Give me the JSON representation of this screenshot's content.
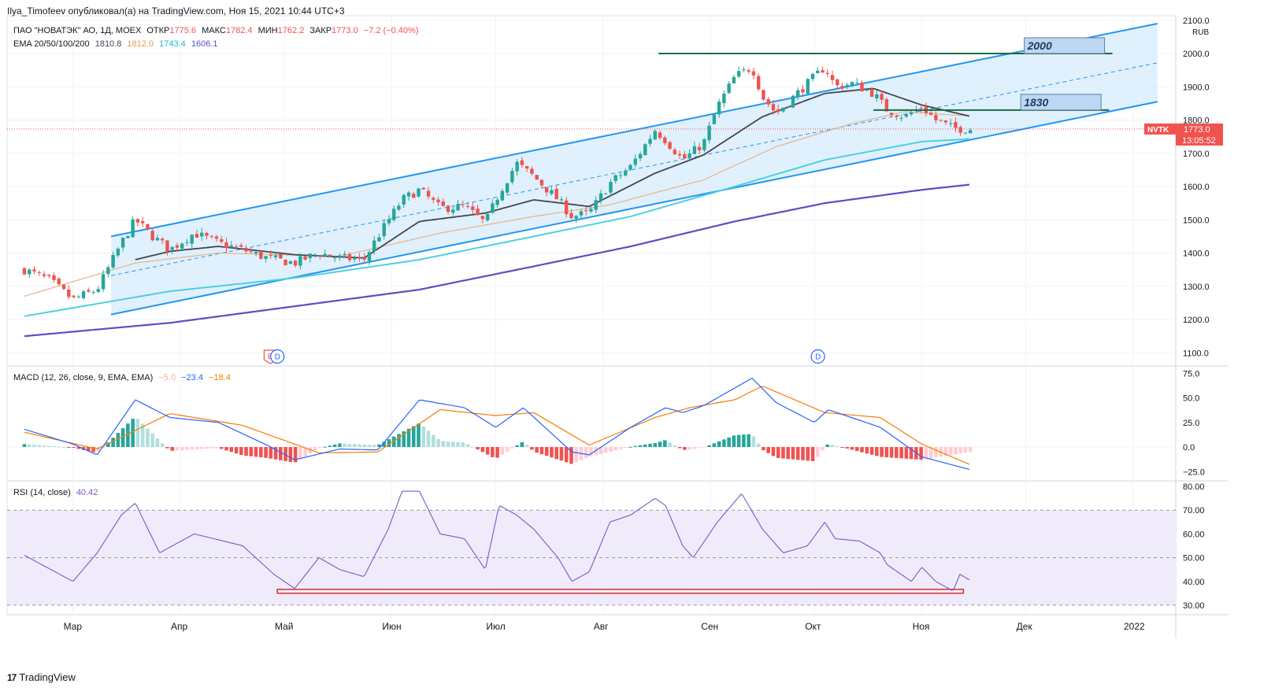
{
  "header": {
    "publisher_line": "Ilya_Timofeev опубликовал(а) на TradingView.com, Ноя 15, 2021 10:44 UTC+3"
  },
  "legend": {
    "instrument": "ПАО \"НОВАТЭК\" АО, 1Д, MOEX",
    "open_label": "ОТКР",
    "open": "1775.6",
    "high_label": "МАКС",
    "high": "1782.4",
    "low_label": "МИН",
    "low": "1762.2",
    "close_label": "ЗАКР",
    "close": "1773.0",
    "change": "−7.2 (−0.40%)",
    "ema_label": "EMA 20/50/100/200",
    "ema20": "1810.8",
    "ema50": "1812.0",
    "ema100": "1743.4",
    "ema200": "1606.1",
    "macd_label": "MACD (12, 26, close, 9, EMA, EMA)",
    "macd_hist": "−5.0",
    "macd_line": "−23.4",
    "macd_signal": "−18.4",
    "rsi_label": "RSI (14, close)",
    "rsi_value": "40.42"
  },
  "colors": {
    "up": "#26a69a",
    "down": "#ef5350",
    "ema20": "#434651",
    "ema50": "#e3b58a",
    "ema100": "#4dd0e1",
    "ema200": "#5b4fc4",
    "channel": "#2196f3",
    "channel_fill": "#d6ebfb",
    "macd": "#2962ff",
    "signal": "#f57c00",
    "rsi": "#7e57c2",
    "rsi_band": "#f0ebfa",
    "level": "#1a6b47",
    "price_tag": "#ef5350"
  },
  "price_tag": {
    "symbol": "NVTK",
    "price": "1773.0",
    "countdown": "13:05:52"
  },
  "currency": "RUB",
  "events": {
    "earnings": "E",
    "dividend": "D"
  },
  "brand": {
    "name": "TradingView",
    "logo": "17"
  },
  "chart_data": [
    {
      "type": "candlestick",
      "symbol": "NVTK",
      "ylim": [
        1100,
        2100
      ],
      "y_ticks": [
        "1100.0",
        "1200.0",
        "1300.0",
        "1400.0",
        "1500.0",
        "1600.0",
        "1700.0",
        "1800.0",
        "1900.0",
        "2000.0",
        "2100.0"
      ],
      "x_ticks": [
        "Мар",
        "Апр",
        "Май",
        "Июн",
        "Июл",
        "Авг",
        "Сен",
        "Окт",
        "Ноя",
        "Дек",
        "2022"
      ],
      "x_tick_dates": [
        "2021-03-01",
        "2021-04-01",
        "2021-05-01",
        "2021-06-01",
        "2021-07-01",
        "2021-08-01",
        "2021-09-01",
        "2021-10-01",
        "2021-11-01",
        "2021-12-01",
        "2022-01-01"
      ],
      "close_key": [
        [
          "2021-02-15",
          1350
        ],
        [
          "2021-02-22",
          1320
        ],
        [
          "2021-03-01",
          1260
        ],
        [
          "2021-03-08",
          1290
        ],
        [
          "2021-03-15",
          1430
        ],
        [
          "2021-03-19",
          1500
        ],
        [
          "2021-03-24",
          1450
        ],
        [
          "2021-03-29",
          1410
        ],
        [
          "2021-04-05",
          1460
        ],
        [
          "2021-04-12",
          1430
        ],
        [
          "2021-04-19",
          1410
        ],
        [
          "2021-04-26",
          1385
        ],
        [
          "2021-05-04",
          1370
        ],
        [
          "2021-05-11",
          1400
        ],
        [
          "2021-05-17",
          1385
        ],
        [
          "2021-05-24",
          1380
        ],
        [
          "2021-05-28",
          1450
        ],
        [
          "2021-06-04",
          1560
        ],
        [
          "2021-06-09",
          1590
        ],
        [
          "2021-06-15",
          1535
        ],
        [
          "2021-06-22",
          1540
        ],
        [
          "2021-06-28",
          1490
        ],
        [
          "2021-07-02",
          1580
        ],
        [
          "2021-07-07",
          1670
        ],
        [
          "2021-07-12",
          1630
        ],
        [
          "2021-07-19",
          1560
        ],
        [
          "2021-07-23",
          1510
        ],
        [
          "2021-07-28",
          1520
        ],
        [
          "2021-08-03",
          1610
        ],
        [
          "2021-08-09",
          1660
        ],
        [
          "2021-08-16",
          1770
        ],
        [
          "2021-08-19",
          1740
        ],
        [
          "2021-08-24",
          1680
        ],
        [
          "2021-08-30",
          1730
        ],
        [
          "2021-09-03",
          1840
        ],
        [
          "2021-09-08",
          1930
        ],
        [
          "2021-09-13",
          1960
        ],
        [
          "2021-09-16",
          1870
        ],
        [
          "2021-09-20",
          1820
        ],
        [
          "2021-09-24",
          1860
        ],
        [
          "2021-09-29",
          1910
        ],
        [
          "2021-10-04",
          1960
        ],
        [
          "2021-10-07",
          1900
        ],
        [
          "2021-10-12",
          1910
        ],
        [
          "2021-10-18",
          1880
        ],
        [
          "2021-10-22",
          1830
        ],
        [
          "2021-10-27",
          1810
        ],
        [
          "2021-11-01",
          1840
        ],
        [
          "2021-11-05",
          1800
        ],
        [
          "2021-11-10",
          1775
        ],
        [
          "2021-11-15",
          1773
        ]
      ],
      "ema20_key": [
        [
          "2021-03-19",
          1380
        ],
        [
          "2021-03-29",
          1405
        ],
        [
          "2021-04-12",
          1420
        ],
        [
          "2021-05-04",
          1395
        ],
        [
          "2021-05-24",
          1385
        ],
        [
          "2021-06-09",
          1495
        ],
        [
          "2021-06-28",
          1520
        ],
        [
          "2021-07-12",
          1560
        ],
        [
          "2021-07-28",
          1540
        ],
        [
          "2021-08-16",
          1640
        ],
        [
          "2021-08-30",
          1695
        ],
        [
          "2021-09-16",
          1810
        ],
        [
          "2021-10-04",
          1880
        ],
        [
          "2021-10-18",
          1895
        ],
        [
          "2021-11-01",
          1845
        ],
        [
          "2021-11-15",
          1811
        ]
      ],
      "ema50_key": [
        [
          "2021-02-15",
          1270
        ],
        [
          "2021-03-19",
          1370
        ],
        [
          "2021-04-12",
          1400
        ],
        [
          "2021-05-17",
          1390
        ],
        [
          "2021-06-15",
          1460
        ],
        [
          "2021-07-12",
          1510
        ],
        [
          "2021-08-03",
          1545
        ],
        [
          "2021-08-30",
          1620
        ],
        [
          "2021-09-20",
          1720
        ],
        [
          "2021-10-12",
          1790
        ],
        [
          "2021-10-27",
          1825
        ],
        [
          "2021-11-15",
          1812
        ]
      ],
      "ema100_key": [
        [
          "2021-02-15",
          1210
        ],
        [
          "2021-03-29",
          1285
        ],
        [
          "2021-05-04",
          1325
        ],
        [
          "2021-06-09",
          1380
        ],
        [
          "2021-07-12",
          1450
        ],
        [
          "2021-08-09",
          1510
        ],
        [
          "2021-09-08",
          1600
        ],
        [
          "2021-10-04",
          1680
        ],
        [
          "2021-11-01",
          1735
        ],
        [
          "2021-11-15",
          1743
        ]
      ],
      "ema200_key": [
        [
          "2021-02-15",
          1150
        ],
        [
          "2021-03-29",
          1190
        ],
        [
          "2021-05-04",
          1240
        ],
        [
          "2021-06-09",
          1290
        ],
        [
          "2021-07-12",
          1360
        ],
        [
          "2021-08-09",
          1420
        ],
        [
          "2021-09-08",
          1495
        ],
        [
          "2021-10-04",
          1550
        ],
        [
          "2021-11-01",
          1590
        ],
        [
          "2021-11-15",
          1606
        ]
      ],
      "channel": {
        "upper": [
          [
            "2021-03-12",
            1450
          ],
          [
            "2022-01-08",
            2090
          ]
        ],
        "lower": [
          [
            "2021-03-12",
            1215
          ],
          [
            "2022-01-08",
            1855
          ]
        ],
        "mid": [
          [
            "2021-03-12",
            1332
          ],
          [
            "2022-01-08",
            1972
          ]
        ]
      },
      "levels": [
        {
          "label": "2000",
          "price": 2000,
          "start": "2021-08-17",
          "end": "2021-12-26"
        },
        {
          "label": "1830",
          "price": 1830,
          "start": "2021-10-18",
          "end": "2021-12-25"
        }
      ],
      "events": [
        {
          "type": "E",
          "date": "2021-04-27"
        },
        {
          "type": "D",
          "date": "2021-04-29"
        },
        {
          "type": "D",
          "date": "2021-10-02"
        }
      ]
    },
    {
      "type": "line",
      "name": "MACD",
      "ylim": [
        -32,
        78
      ],
      "y_ticks": [
        "−25.0",
        "0.0",
        "25.0",
        "50.0",
        "75.0"
      ],
      "macd_key": [
        [
          "2021-02-15",
          18
        ],
        [
          "2021-03-01",
          3
        ],
        [
          "2021-03-08",
          -8
        ],
        [
          "2021-03-19",
          48
        ],
        [
          "2021-03-29",
          30
        ],
        [
          "2021-04-12",
          25
        ],
        [
          "2021-04-26",
          2
        ],
        [
          "2021-05-04",
          -13
        ],
        [
          "2021-05-17",
          -2
        ],
        [
          "2021-05-28",
          -3
        ],
        [
          "2021-06-09",
          48
        ],
        [
          "2021-06-22",
          40
        ],
        [
          "2021-07-01",
          20
        ],
        [
          "2021-07-09",
          40
        ],
        [
          "2021-07-23",
          -5
        ],
        [
          "2021-07-28",
          -8
        ],
        [
          "2021-08-09",
          20
        ],
        [
          "2021-08-19",
          40
        ],
        [
          "2021-08-24",
          35
        ],
        [
          "2021-08-30",
          42
        ],
        [
          "2021-09-13",
          70
        ],
        [
          "2021-09-20",
          45
        ],
        [
          "2021-10-01",
          25
        ],
        [
          "2021-10-05",
          38
        ],
        [
          "2021-10-20",
          20
        ],
        [
          "2021-11-01",
          -10
        ],
        [
          "2021-11-15",
          -23
        ]
      ],
      "signal_key": [
        [
          "2021-02-15",
          15
        ],
        [
          "2021-03-08",
          -2
        ],
        [
          "2021-03-29",
          34
        ],
        [
          "2021-04-19",
          22
        ],
        [
          "2021-05-11",
          -6
        ],
        [
          "2021-05-28",
          -5
        ],
        [
          "2021-06-15",
          38
        ],
        [
          "2021-07-01",
          32
        ],
        [
          "2021-07-12",
          35
        ],
        [
          "2021-07-28",
          2
        ],
        [
          "2021-08-16",
          30
        ],
        [
          "2021-08-26",
          40
        ],
        [
          "2021-09-08",
          48
        ],
        [
          "2021-09-16",
          62
        ],
        [
          "2021-10-04",
          35
        ],
        [
          "2021-10-20",
          30
        ],
        [
          "2021-11-01",
          3
        ],
        [
          "2021-11-15",
          -18
        ]
      ]
    },
    {
      "type": "line",
      "name": "RSI",
      "ylim": [
        26,
        82
      ],
      "y_ticks": [
        "30.00",
        "40.00",
        "50.00",
        "60.00",
        "70.00",
        "80.00"
      ],
      "bands": [
        30,
        50,
        70
      ],
      "rsi_key": [
        [
          "2021-02-15",
          51
        ],
        [
          "2021-03-01",
          40
        ],
        [
          "2021-03-08",
          52
        ],
        [
          "2021-03-15",
          68
        ],
        [
          "2021-03-19",
          73
        ],
        [
          "2021-03-26",
          52
        ],
        [
          "2021-04-05",
          60
        ],
        [
          "2021-04-19",
          55
        ],
        [
          "2021-04-28",
          43
        ],
        [
          "2021-05-04",
          37
        ],
        [
          "2021-05-11",
          50
        ],
        [
          "2021-05-17",
          45
        ],
        [
          "2021-05-24",
          42
        ],
        [
          "2021-05-31",
          62
        ],
        [
          "2021-06-04",
          78
        ],
        [
          "2021-06-09",
          78
        ],
        [
          "2021-06-15",
          60
        ],
        [
          "2021-06-22",
          58
        ],
        [
          "2021-06-28",
          45
        ],
        [
          "2021-07-02",
          72
        ],
        [
          "2021-07-07",
          68
        ],
        [
          "2021-07-12",
          62
        ],
        [
          "2021-07-19",
          50
        ],
        [
          "2021-07-23",
          40
        ],
        [
          "2021-07-28",
          44
        ],
        [
          "2021-08-03",
          65
        ],
        [
          "2021-08-09",
          68
        ],
        [
          "2021-08-16",
          75
        ],
        [
          "2021-08-19",
          72
        ],
        [
          "2021-08-24",
          55
        ],
        [
          "2021-08-27",
          50
        ],
        [
          "2021-09-03",
          65
        ],
        [
          "2021-09-10",
          77
        ],
        [
          "2021-09-16",
          62
        ],
        [
          "2021-09-22",
          52
        ],
        [
          "2021-09-29",
          55
        ],
        [
          "2021-10-04",
          65
        ],
        [
          "2021-10-07",
          58
        ],
        [
          "2021-10-14",
          57
        ],
        [
          "2021-10-20",
          52
        ],
        [
          "2021-10-22",
          47
        ],
        [
          "2021-10-29",
          40
        ],
        [
          "2021-11-01",
          46
        ],
        [
          "2021-11-05",
          40
        ],
        [
          "2021-11-10",
          36
        ],
        [
          "2021-11-12",
          43
        ],
        [
          "2021-11-15",
          40.4
        ]
      ],
      "support_box": {
        "start": "2021-04-29",
        "end": "2021-11-13",
        "value": 36
      }
    }
  ]
}
